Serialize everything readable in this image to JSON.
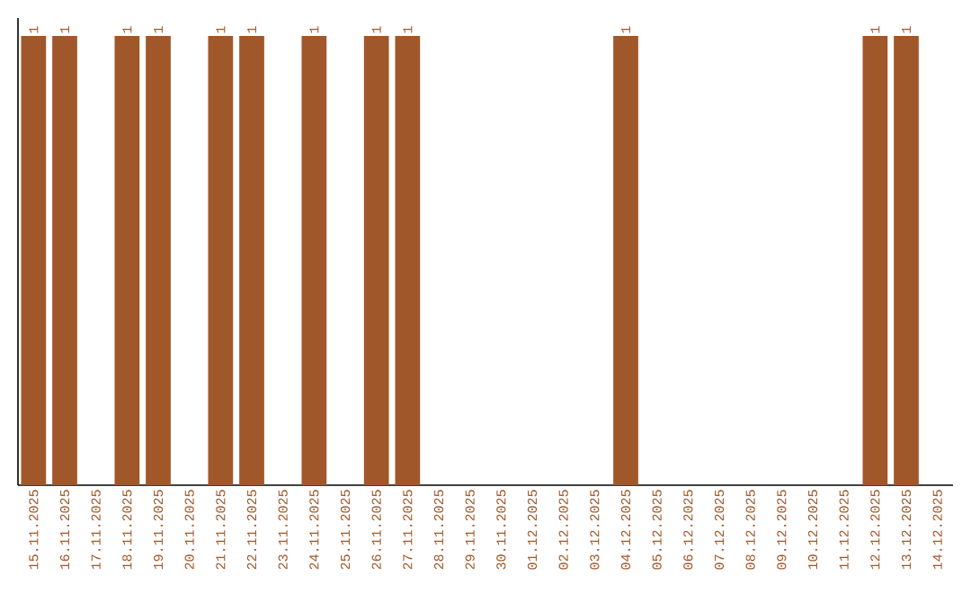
{
  "chart_data": {
    "type": "bar",
    "categories": [
      "15.11.2025",
      "16.11.2025",
      "17.11.2025",
      "18.11.2025",
      "19.11.2025",
      "20.11.2025",
      "21.11.2025",
      "22.11.2025",
      "23.11.2025",
      "24.11.2025",
      "25.11.2025",
      "26.11.2025",
      "27.11.2025",
      "28.11.2025",
      "29.11.2025",
      "30.11.2025",
      "01.12.2025",
      "02.12.2025",
      "03.12.2025",
      "04.12.2025",
      "05.12.2025",
      "06.12.2025",
      "07.12.2025",
      "08.12.2025",
      "09.12.2025",
      "10.12.2025",
      "11.12.2025",
      "12.12.2025",
      "13.12.2025",
      "14.12.2025"
    ],
    "values": [
      1,
      1,
      0,
      1,
      1,
      0,
      1,
      1,
      0,
      1,
      0,
      1,
      1,
      0,
      0,
      0,
      0,
      0,
      0,
      1,
      0,
      0,
      0,
      0,
      0,
      0,
      0,
      1,
      1,
      0
    ],
    "value_labels": [
      "1",
      "1",
      null,
      "1",
      "1",
      null,
      "1",
      "1",
      null,
      "1",
      null,
      "1",
      "1",
      null,
      null,
      null,
      null,
      null,
      null,
      "1",
      null,
      null,
      null,
      null,
      null,
      null,
      null,
      "1",
      "1",
      null
    ],
    "color": "#a0582a",
    "tick_labels": "x",
    "grid": false
  }
}
